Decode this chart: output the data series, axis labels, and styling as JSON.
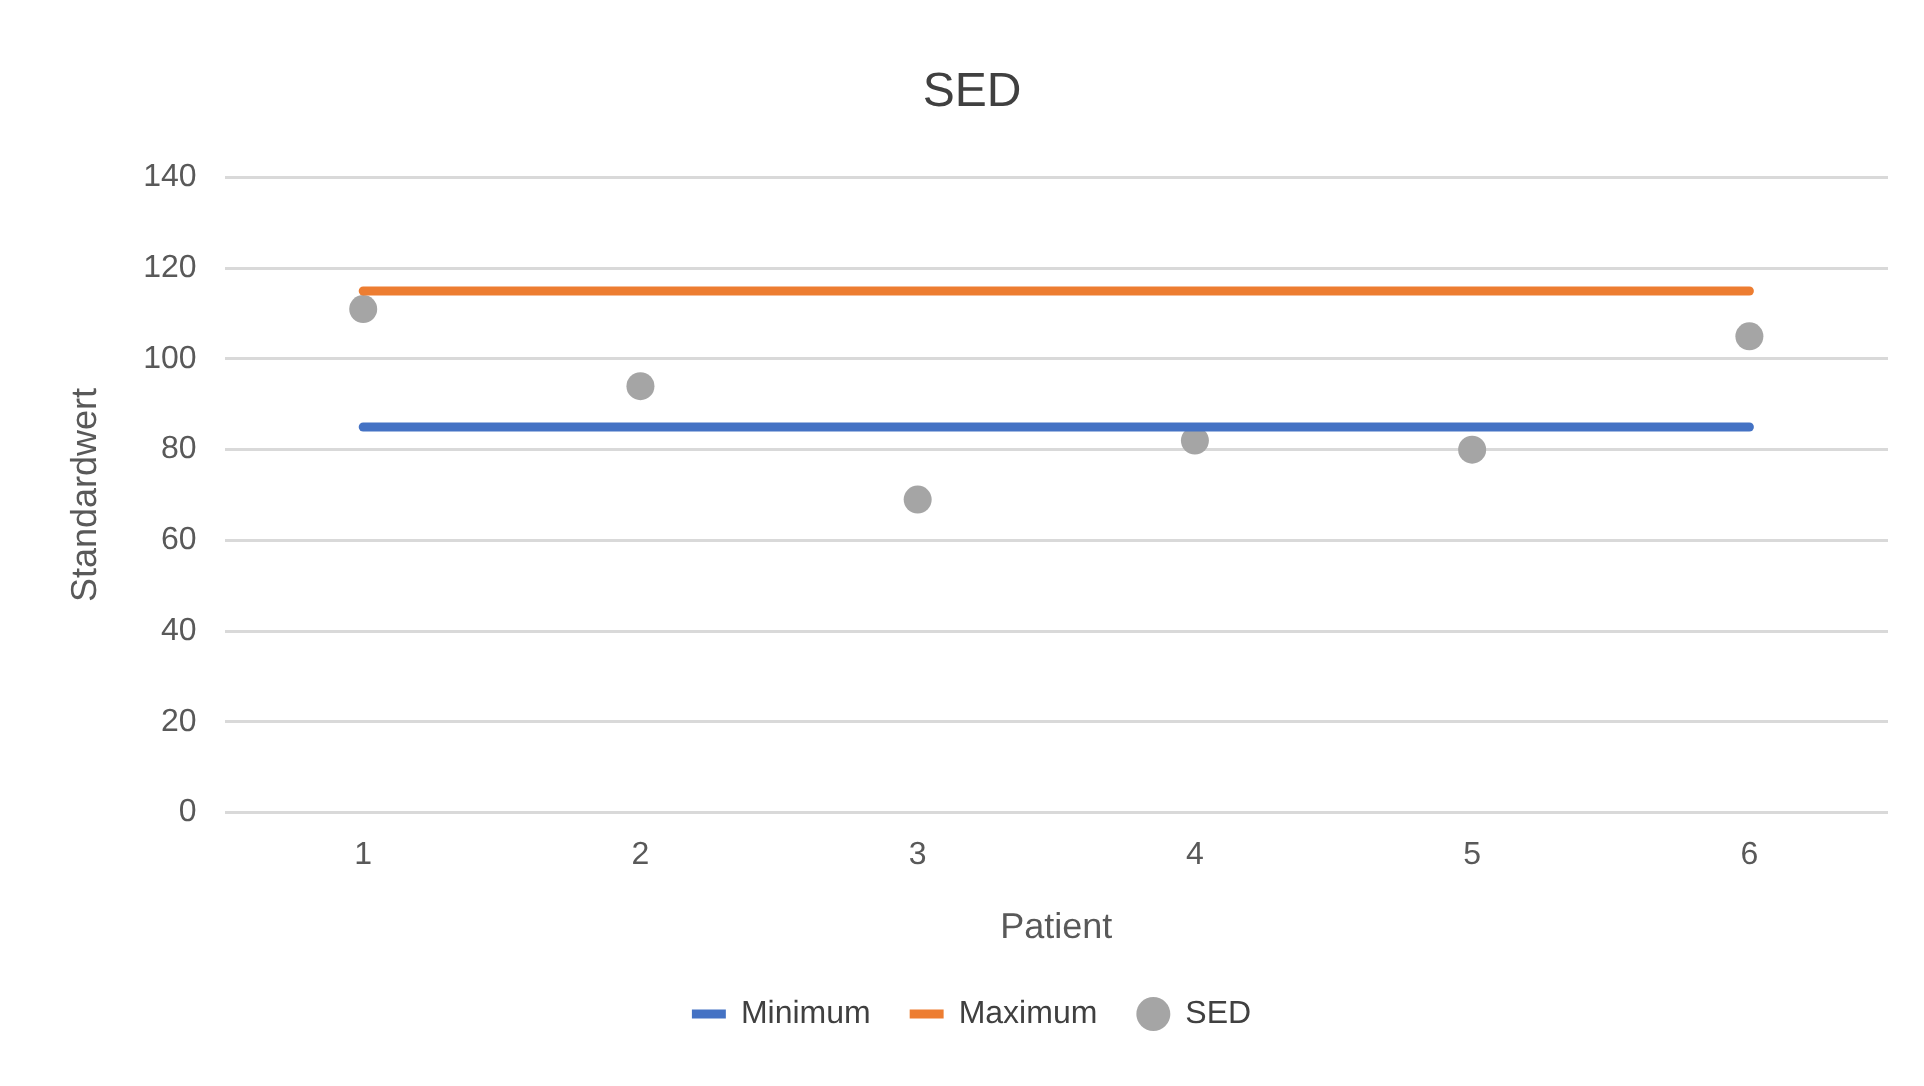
{
  "chart_data": {
    "type": "line",
    "title": "SED",
    "xlabel": "Patient",
    "ylabel": "Standardwert",
    "categories": [
      "1",
      "2",
      "3",
      "4",
      "5",
      "6"
    ],
    "series": [
      {
        "name": "Minimum",
        "type": "line",
        "color": "#4472c4",
        "marker": "none",
        "values": [
          85,
          85,
          85,
          85,
          85,
          85
        ]
      },
      {
        "name": "Maximum",
        "type": "line",
        "color": "#ed7d31",
        "marker": "none",
        "values": [
          115,
          115,
          115,
          115,
          115,
          115
        ]
      },
      {
        "name": "SED",
        "type": "scatter",
        "color": "#a5a5a5",
        "marker": "circle",
        "values": [
          111,
          94,
          69,
          82,
          80,
          105
        ]
      }
    ],
    "ylim": [
      0,
      140
    ],
    "yticks": [
      0,
      20,
      40,
      60,
      80,
      100,
      120,
      140
    ],
    "grid": "y",
    "legend": "bottom"
  }
}
